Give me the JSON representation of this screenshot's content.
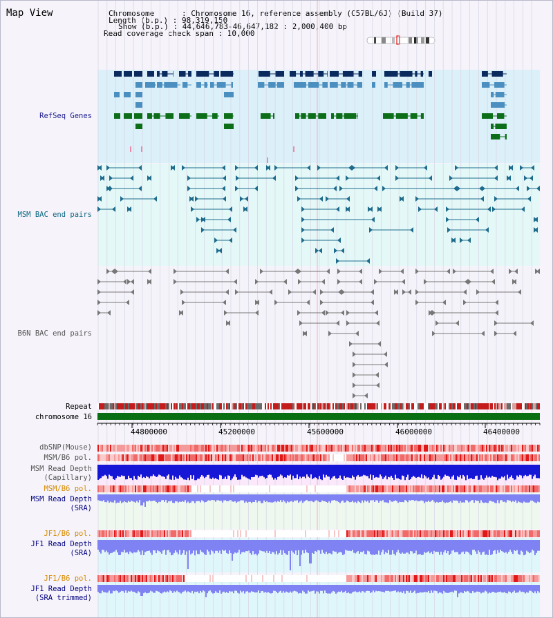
{
  "title": "Map View",
  "info": {
    "chromosome": "Chromosome      : Chromosome 16, reference assembly (C57BL/6J) (Build 37)",
    "length": "Length (b.p.) : 98,319,150",
    "show": "Show (b.p.) : 44,646,783-46,647,182 : 2,000,400 bp",
    "coverage": "Read coverage check span : 10,000"
  },
  "tracks": {
    "refseq": "RefSeq Genes",
    "msm_bac": "MSM BAC end pairs",
    "b6n_bac": "B6N BAC end pairs",
    "repeat": "Repeat",
    "chromosome": "chromosome 16",
    "dbsnp": "dbSNP(Mouse)",
    "msm_pol": "MSM/B6 pol.",
    "msm_depth_cap1": "MSM Read Depth",
    "msm_depth_cap2": "(Capillary)",
    "msm_pol2": "MSM/B6 pol.",
    "msm_depth_sra1": "MSM Read Depth",
    "msm_depth_sra2": "(SRA)",
    "jf1_pol": "JF1/B6 pol.",
    "jf1_depth1": "JF1 Read Depth",
    "jf1_depth2": "(SRA)",
    "jf1_pol2": "JF1/B6 pol.",
    "jf1_trim1": "JF1 Read Depth",
    "jf1_trim2": "(SRA trimmed)"
  },
  "axis": {
    "ticks": [
      "44800000",
      "45200000",
      "45600000",
      "46000000",
      "46400000"
    ]
  },
  "colors": {
    "refseq_dark": "#0b2a5e",
    "refseq_mid": "#4a8fbf",
    "refseq_green": "#0c6e18",
    "msm_bac": "#1e6b8c",
    "b6n_bac": "#777777",
    "depth_blue": "#1c1cd8",
    "depth_light": "#7f82f2",
    "label_navy": "#000080",
    "label_orange": "#d68a00"
  }
}
